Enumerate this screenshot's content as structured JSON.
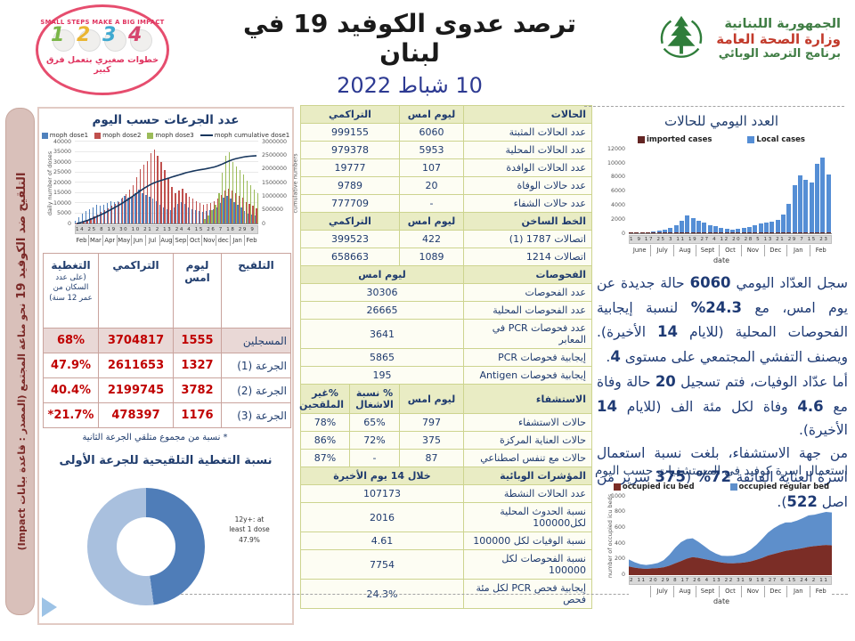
{
  "header": {
    "badge": {
      "top_text": "SMALL STEPS MAKE A BIG IMPACT",
      "numbers": [
        "1",
        "2",
        "3",
        "4"
      ],
      "bottom_text": "خطوات صغيري بتعمل فرق كبير"
    },
    "title": "ترصد عدوى الكوفيد 19 في لبنان",
    "date": "10 شباط 2022",
    "gov": {
      "line1": "الجمهورية اللبنانية",
      "line2": "وزارة الصحة العامة",
      "line3": "برنامج الترصد الوبائي"
    }
  },
  "sidebar": {
    "title": "التلقيح ضد الكوفيد 19",
    "subtitle": "نحو مناعة المجتمع (المصدر : قاعدة بيانات Impact)"
  },
  "left_panel": {
    "vaccination_table": {
      "headers": {
        "vaccination": "التلقيح",
        "yesterday": "ليوم امس",
        "cumulative": "التراكمي",
        "coverage": "التغطية",
        "coverage_note": "(على عدد السكان من عمر 12 سنة)"
      },
      "rows": [
        {
          "label": "المسجلين",
          "yesterday": "1555",
          "cumulative": "3704817",
          "coverage": "68%",
          "highlight": true
        },
        {
          "label": "الجرعة (1)",
          "yesterday": "1327",
          "cumulative": "2611653",
          "coverage": "47.9%",
          "highlight": false
        },
        {
          "label": "الجرعة (2)",
          "yesterday": "3782",
          "cumulative": "2199745",
          "coverage": "40.4%",
          "highlight": false
        },
        {
          "label": "الجرعة (3)",
          "yesterday": "1176",
          "cumulative": "478397",
          "coverage": "21.7%*",
          "highlight": false
        }
      ]
    },
    "footnote": "* نسبة من مجموع متلقي الجرعة الثانية"
  },
  "middle_table": {
    "sections": [
      {
        "header": {
          "label": "الحالات",
          "cols": [
            {
              "t": "ليوم امس",
              "span": 1
            },
            {
              "t": "التراكمي",
              "span": 2
            }
          ]
        },
        "rows": [
          {
            "label": "عدد الحالات المثبتة",
            "vals": [
              {
                "t": "6060",
                "span": 1
              },
              {
                "t": "999155",
                "span": 2
              }
            ]
          },
          {
            "label": "عدد الحالات المحلية",
            "vals": [
              {
                "t": "5953",
                "span": 1
              },
              {
                "t": "979378",
                "span": 2
              }
            ]
          },
          {
            "label": "عدد الحالات الوافدة",
            "vals": [
              {
                "t": "107",
                "span": 1
              },
              {
                "t": "19777",
                "span": 2
              }
            ]
          },
          {
            "label": "عدد حالات الوفاة",
            "vals": [
              {
                "t": "20",
                "span": 1
              },
              {
                "t": "9789",
                "span": 2
              }
            ]
          },
          {
            "label": "عدد حالات الشفاء",
            "vals": [
              {
                "t": "-",
                "span": 1
              },
              {
                "t": "777709",
                "span": 2
              }
            ]
          }
        ]
      },
      {
        "header": {
          "label": "الخط الساخن",
          "cols": [
            {
              "t": "ليوم امس",
              "span": 1
            },
            {
              "t": "التراكمي",
              "span": 2
            }
          ]
        },
        "rows": [
          {
            "label": "اتصالات 1787 (1)",
            "vals": [
              {
                "t": "422",
                "span": 1
              },
              {
                "t": "399523",
                "span": 2
              }
            ]
          },
          {
            "label": "اتصالات 1214",
            "vals": [
              {
                "t": "1089",
                "span": 1
              },
              {
                "t": "658663",
                "span": 2
              }
            ]
          }
        ]
      },
      {
        "header": {
          "label": "الفحوصات",
          "cols": [
            {
              "t": "ليوم امس",
              "span": 3
            }
          ]
        },
        "rows": [
          {
            "label": "عدد الفحوصات",
            "vals": [
              {
                "t": "30306",
                "span": 3
              }
            ]
          },
          {
            "label": "عدد الفحوصات المحلية",
            "vals": [
              {
                "t": "26665",
                "span": 3
              }
            ]
          },
          {
            "label": "عدد فحوصات PCR في المعابر",
            "vals": [
              {
                "t": "3641",
                "span": 3
              }
            ]
          },
          {
            "label": "إيجابية فحوصات PCR",
            "vals": [
              {
                "t": "5865",
                "span": 3
              }
            ]
          },
          {
            "label": "إيجابية فحوصات Antigen",
            "vals": [
              {
                "t": "195",
                "span": 3
              }
            ]
          }
        ]
      },
      {
        "header": {
          "label": "الاستشفاء",
          "cols": [
            {
              "t": "ليوم امس",
              "span": 1
            },
            {
              "t": "% نسبة الاشغال",
              "span": 1
            },
            {
              "t": "%غير الملقحين",
              "span": 1
            }
          ]
        },
        "rows": [
          {
            "label": "حالات الاستشفاء",
            "vals": [
              {
                "t": "797",
                "span": 1
              },
              {
                "t": "65%",
                "span": 1
              },
              {
                "t": "78%",
                "span": 1
              }
            ]
          },
          {
            "label": "حالات العناية المركزة",
            "vals": [
              {
                "t": "375",
                "span": 1
              },
              {
                "t": "72%",
                "span": 1
              },
              {
                "t": "86%",
                "span": 1
              }
            ]
          },
          {
            "label": "حالات مع تنفس اصطناعي",
            "vals": [
              {
                "t": "87",
                "span": 1
              },
              {
                "t": "-",
                "span": 1
              },
              {
                "t": "87%",
                "span": 1
              }
            ]
          }
        ]
      },
      {
        "header": {
          "label": "المؤشرات الوبائية",
          "cols": [
            {
              "t": "خلال 14 يوم الأخيرة",
              "span": 3
            }
          ]
        },
        "rows": [
          {
            "label": "عدد الحالات النشطة",
            "vals": [
              {
                "t": "107173",
                "span": 3
              }
            ]
          },
          {
            "label": "نسبة الحدوث المحلية لكل100000",
            "vals": [
              {
                "t": "2016",
                "span": 3
              }
            ]
          },
          {
            "label": "نسبة الوفيات لكل 100000",
            "vals": [
              {
                "t": "4.61",
                "span": 3
              }
            ]
          },
          {
            "label": "نسبة الفحوصات لكل 100000",
            "vals": [
              {
                "t": "7754",
                "span": 3
              }
            ]
          },
          {
            "label": "إيجابية فحص PCR لكل مئة فحص",
            "vals": [
              {
                "t": "24.3%",
                "span": 3
              }
            ]
          }
        ]
      }
    ]
  },
  "right_column": {
    "paragraph": [
      {
        "t": "سجل العدّاد اليومي "
      },
      {
        "t": "6060",
        "b": true
      },
      {
        "t": " حالة جديدة عن يوم امس، مع "
      },
      {
        "t": "24.3%",
        "b": true
      },
      {
        "t": " لنسبة إيجابية الفحوصات المحلية (للايام "
      },
      {
        "t": "14",
        "b": true
      },
      {
        "t": " الأخيرة). ويصنف التفشي المجتمعي على مستوى "
      },
      {
        "t": "4",
        "b": true
      },
      {
        "t": ".",
        "br": true
      },
      {
        "t": "أما عدّاد الوفيات، فتم تسجيل "
      },
      {
        "t": "20",
        "b": true
      },
      {
        "t": " حالة وفاة مع "
      },
      {
        "t": "4.6",
        "b": true
      },
      {
        "t": " وفاة لكل مئة الف (للايام "
      },
      {
        "t": "14",
        "b": true
      },
      {
        "t": " الأخيرة).",
        "br": true
      },
      {
        "t": "من جهة الاستشفاء، بلغت نسبة استعمال اسرة العناية الفائقة "
      },
      {
        "t": "72%",
        "b": true
      },
      {
        "t": " ("
      },
      {
        "t": "375",
        "b": true
      },
      {
        "t": " سرير من اصل "
      },
      {
        "t": "522",
        "b": true
      },
      {
        "t": ")."
      }
    ]
  },
  "chart_data": [
    {
      "id": "doses",
      "type": "bar+line",
      "title": "عدد الجرعات حسب اليوم",
      "legend": [
        {
          "label": "moph dose1",
          "color": "#4f81bd",
          "marker": "box"
        },
        {
          "label": "moph dose2",
          "color": "#c0504d",
          "marker": "box"
        },
        {
          "label": "moph dose3",
          "color": "#9bbb59",
          "marker": "box"
        },
        {
          "label": "moph cumulative dose1",
          "color": "#17365d",
          "marker": "line"
        }
      ],
      "ylabel_left": "daily number of doses",
      "ylabel_right": "cumulative numbers",
      "ylim_left": [
        0,
        40000
      ],
      "yticks_left": [
        0,
        5000,
        10000,
        15000,
        20000,
        25000,
        30000,
        35000,
        40000
      ],
      "ylim_right": [
        0,
        3000000
      ],
      "yticks_right": [
        0,
        500000,
        1000000,
        1500000,
        2000000,
        2500000,
        3000000
      ],
      "x_months": [
        "Feb",
        "Mar",
        "Apr",
        "May",
        "Jun",
        "Jul",
        "Aug",
        "Sep",
        "Oct",
        "Nov",
        "dec",
        "Jan",
        "Feb"
      ],
      "x_day_ticks": "14 25 8 19 30 10 21 2 13 24 4 15 26 7 18 29 9 20 31 11 22 3 14 25 5 16 27 8 19 30 10 21 1",
      "series": {
        "dose1": [
          1500,
          3000,
          5000,
          6000,
          7000,
          8000,
          9000,
          8500,
          9000,
          10000,
          11000,
          10500,
          11000,
          12000,
          13500,
          12500,
          13000,
          15000,
          16500,
          15000,
          14000,
          13000,
          12000,
          11000,
          9000,
          8000,
          7000,
          6500,
          8000,
          9500,
          10500,
          9500,
          8000,
          7000,
          6500,
          6000,
          5500,
          6000,
          6500,
          7000,
          8000,
          10000,
          12500,
          13500,
          12000,
          10500,
          9000,
          8000,
          6000,
          5000,
          4500,
          4000
        ],
        "dose2": [
          200,
          400,
          800,
          1500,
          2500,
          3500,
          4500,
          5500,
          6500,
          7500,
          8500,
          9500,
          10500,
          12500,
          14500,
          16500,
          18500,
          22500,
          26500,
          28500,
          30500,
          34500,
          36000,
          33000,
          30000,
          26000,
          22000,
          18000,
          15000,
          16000,
          17000,
          15000,
          13000,
          12000,
          11000,
          10000,
          9000,
          9500,
          10000,
          11000,
          12000,
          14000,
          16000,
          17000,
          16000,
          15000,
          13500,
          12500,
          10500,
          9500,
          8500,
          7500
        ],
        "dose3": [
          0,
          0,
          0,
          0,
          0,
          0,
          0,
          0,
          0,
          0,
          0,
          0,
          0,
          0,
          0,
          0,
          0,
          0,
          0,
          0,
          0,
          0,
          0,
          0,
          0,
          0,
          0,
          0,
          0,
          0,
          0,
          0,
          0,
          0,
          0,
          0,
          2000,
          4000,
          6500,
          9000,
          15000,
          25000,
          33000,
          35000,
          30000,
          28000,
          26000,
          24000,
          21000,
          18500,
          16500,
          15000
        ],
        "cumulative_dose1": [
          30000,
          60000,
          100000,
          140000,
          190000,
          240000,
          300000,
          360000,
          420000,
          490000,
          560000,
          630000,
          700000,
          780000,
          860000,
          950000,
          1040000,
          1130000,
          1220000,
          1310000,
          1390000,
          1460000,
          1520000,
          1570000,
          1610000,
          1650000,
          1690000,
          1730000,
          1770000,
          1810000,
          1850000,
          1890000,
          1920000,
          1950000,
          1975000,
          2000000,
          2020000,
          2045000,
          2070000,
          2100000,
          2140000,
          2190000,
          2250000,
          2310000,
          2360000,
          2400000,
          2430000,
          2460000,
          2480000,
          2495000,
          2505000,
          2515000
        ]
      }
    },
    {
      "id": "first-dose-coverage",
      "type": "pie",
      "title": "نسبة التغطية التلقيحية للجرعة الأولى",
      "segments": [
        {
          "label": "12y+: at least 1 dose",
          "value": 47.9,
          "color": "#4f7db8"
        },
        {
          "label": "",
          "value": 52.1,
          "color": "#a9c0de"
        }
      ],
      "callout_lines": [
        "12y+: at",
        "least 1 dose",
        "47.9%"
      ]
    },
    {
      "id": "daily-cases",
      "type": "bar",
      "title": "العدد اليومي للحالات",
      "legend": [
        {
          "label": "imported cases",
          "color": "#632523",
          "marker": "box"
        },
        {
          "label": "Local cases",
          "color": "#558ed5",
          "marker": "box"
        }
      ],
      "xlabel": "date",
      "ylim": [
        0,
        12000
      ],
      "yticks": [
        0,
        2000,
        4000,
        6000,
        8000,
        10000,
        12000
      ],
      "x_months": [
        "June",
        "July",
        "Aug",
        "Sept",
        "Oct",
        "Nov",
        "Dec",
        "Jan",
        "Feb"
      ],
      "x_day_ticks": "1 9 17 25 3 11 19 27 4 12 20 28 5 13 21 29 7 15 23 31 8 16 24 2 10 18 26 3 11 19 27 4",
      "series": {
        "local": [
          150,
          140,
          160,
          180,
          250,
          350,
          500,
          700,
          1200,
          1800,
          2500,
          2200,
          1800,
          1500,
          1200,
          1000,
          700,
          600,
          550,
          600,
          700,
          900,
          1100,
          1400,
          1500,
          1700,
          1900,
          2600,
          4200,
          6800,
          8200,
          7600,
          7200,
          9800,
          10800,
          8300
        ],
        "imported": [
          30,
          30,
          30,
          30,
          40,
          40,
          50,
          60,
          80,
          90,
          90,
          80,
          60,
          50,
          40,
          40,
          30,
          30,
          30,
          40,
          50,
          60,
          70,
          80,
          90,
          100,
          110,
          130,
          150,
          160,
          150,
          140,
          130,
          120,
          110,
          100
        ]
      }
    },
    {
      "id": "hospital-beds",
      "type": "area-stacked",
      "title": "استعمال اسرة كوفيد في المستشفيات حسب اليوم",
      "legend": [
        {
          "label": "occupied icu bed",
          "color": "#7b2d26",
          "marker": "box"
        },
        {
          "label": "occupied regular bed",
          "color": "#5e8fcb",
          "marker": "box"
        }
      ],
      "ylabel": "number of occupied icu beds",
      "xlabel": "date",
      "ylim": [
        0,
        1000
      ],
      "yticks": [
        0,
        200,
        400,
        600,
        800,
        1000
      ],
      "x_months": [
        "",
        "July",
        "Aug",
        "Sept",
        "Oct",
        "Nov",
        "Dec",
        "Jan",
        "Feb"
      ],
      "x_day_ticks": "2 11 20 29 8 17 26 4 13 22 31 9 18 27 6 15 24 2 11 20 29 8 17 26 4 13 22 31 9",
      "series": {
        "icu": [
          110,
          95,
          85,
          80,
          85,
          90,
          100,
          120,
          150,
          180,
          210,
          230,
          220,
          205,
          190,
          175,
          160,
          152,
          150,
          155,
          162,
          175,
          195,
          220,
          250,
          270,
          290,
          310,
          322,
          333,
          345,
          360,
          370,
          378,
          385,
          380
        ],
        "regular": [
          90,
          70,
          55,
          50,
          55,
          65,
          90,
          140,
          200,
          240,
          250,
          240,
          205,
          165,
          125,
          100,
          88,
          92,
          98,
          108,
          122,
          152,
          192,
          242,
          292,
          330,
          352,
          362,
          352,
          362,
          382,
          402,
          402,
          412,
          422,
          420
        ]
      }
    }
  ]
}
